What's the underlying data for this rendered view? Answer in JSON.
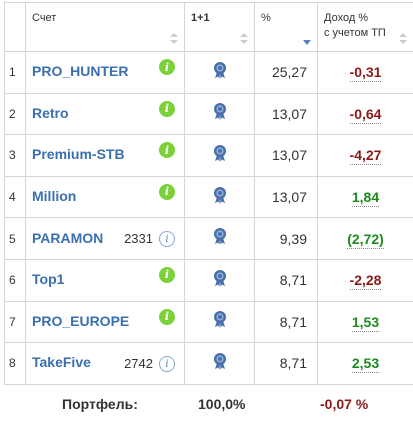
{
  "header": {
    "col_account": "Счет",
    "col_medal": "1+1",
    "col_pct": "%",
    "col_income_line1": "Доход %",
    "col_income_line2": "с учетом ТП"
  },
  "rows": [
    {
      "num": "1",
      "name": "PRO_HUNTER",
      "code": "",
      "info": "green",
      "pct": "25,27",
      "income": "-0,31",
      "income_color": "#8a1919"
    },
    {
      "num": "2",
      "name": "Retro",
      "code": "",
      "info": "green",
      "pct": "13,07",
      "income": "-0,64",
      "income_color": "#8a1919"
    },
    {
      "num": "3",
      "name": "Premium-STB",
      "code": "",
      "info": "green",
      "pct": "13,07",
      "income": "-4,27",
      "income_color": "#8a1919"
    },
    {
      "num": "4",
      "name": "Million",
      "code": "",
      "info": "green",
      "pct": "13,07",
      "income": "1,84",
      "income_color": "#1d8a1d"
    },
    {
      "num": "5",
      "name": "PARAMON",
      "code": "2331",
      "info": "blue",
      "pct": "9,39",
      "income": "(2,72)",
      "income_color": "#1d8a1d"
    },
    {
      "num": "6",
      "name": "Top1",
      "code": "",
      "info": "green",
      "pct": "8,71",
      "income": "-2,28",
      "income_color": "#8a1919"
    },
    {
      "num": "7",
      "name": "PRO_EUROPE",
      "code": "",
      "info": "green",
      "pct": "8,71",
      "income": "1,53",
      "income_color": "#1d8a1d"
    },
    {
      "num": "8",
      "name": "TakeFive",
      "code": "2742",
      "info": "blue",
      "pct": "8,71",
      "income": "2,53",
      "income_color": "#1d8a1d"
    }
  ],
  "footer": {
    "label": "Портфель:",
    "total_pct": "100,0%",
    "income": "-0,07 %"
  },
  "icons": {
    "info_green": "info-green-icon",
    "info_blue": "info-outline-icon",
    "medal": "medal-ribbon-icon",
    "sort": "sort-arrows-icon"
  },
  "info_glyph": "i"
}
